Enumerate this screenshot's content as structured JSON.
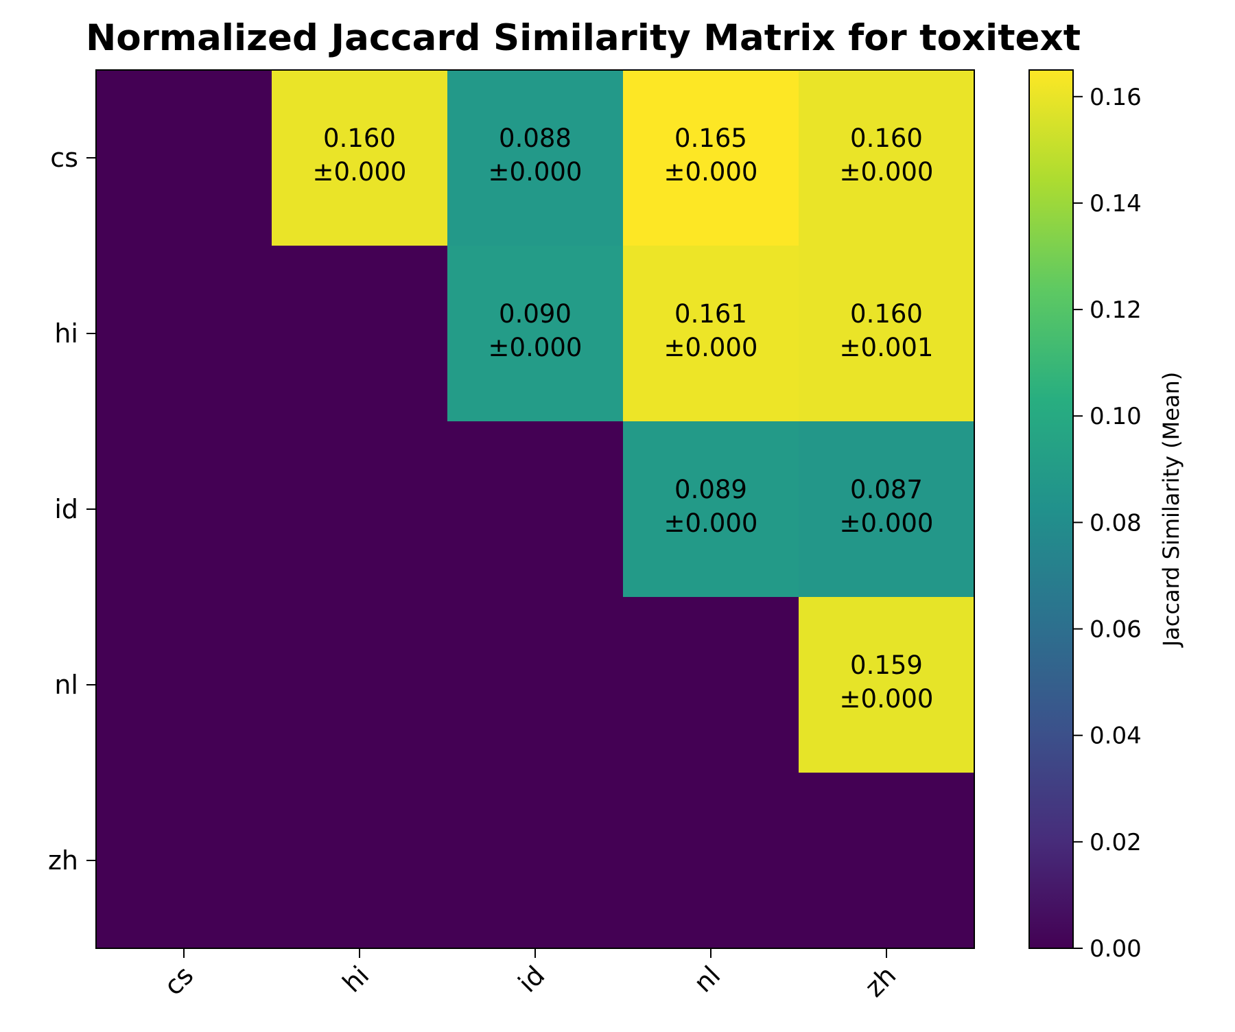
{
  "chart_data": {
    "type": "heatmap",
    "title": "Normalized Jaccard Similarity Matrix for toxitext",
    "x_categories": [
      "cs",
      "hi",
      "id",
      "nl",
      "zh"
    ],
    "y_categories": [
      "cs",
      "hi",
      "id",
      "nl",
      "zh"
    ],
    "values": [
      [
        0,
        0.16,
        0.088,
        0.165,
        0.16
      ],
      [
        0,
        0,
        0.09,
        0.161,
        0.16
      ],
      [
        0,
        0,
        0,
        0.089,
        0.087
      ],
      [
        0,
        0,
        0,
        0,
        0.159
      ],
      [
        0,
        0,
        0,
        0,
        0
      ]
    ],
    "annotations": [
      [
        null,
        {
          "mean": "0.160",
          "std": "±0.000"
        },
        {
          "mean": "0.088",
          "std": "±0.000"
        },
        {
          "mean": "0.165",
          "std": "±0.000"
        },
        {
          "mean": "0.160",
          "std": "±0.000"
        }
      ],
      [
        null,
        null,
        {
          "mean": "0.090",
          "std": "±0.000"
        },
        {
          "mean": "0.161",
          "std": "±0.000"
        },
        {
          "mean": "0.160",
          "std": "±0.001"
        }
      ],
      [
        null,
        null,
        null,
        {
          "mean": "0.089",
          "std": "±0.000"
        },
        {
          "mean": "0.087",
          "std": "±0.000"
        }
      ],
      [
        null,
        null,
        null,
        null,
        {
          "mean": "0.159",
          "std": "±0.000"
        }
      ],
      [
        null,
        null,
        null,
        null,
        null
      ]
    ],
    "colorbar": {
      "label": "Jaccard Similarity (Mean)",
      "range": [
        0,
        0.165
      ],
      "ticks": [
        "0.00",
        "0.02",
        "0.04",
        "0.06",
        "0.08",
        "0.10",
        "0.12",
        "0.14",
        "0.16"
      ],
      "colormap": "viridis"
    }
  }
}
